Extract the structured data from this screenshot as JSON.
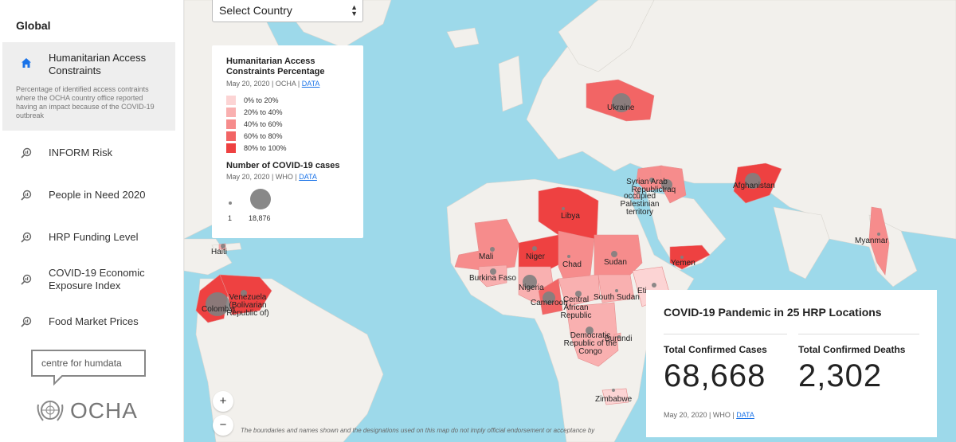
{
  "sidebar": {
    "heading": "Global",
    "items": [
      {
        "label": "Humanitarian Access Constraints",
        "desc": "Percentage of identified access contraints where the OCHA country office reported having an impact because of the COVID-19 outbreak"
      },
      {
        "label": "INFORM Risk"
      },
      {
        "label": "People in Need 2020"
      },
      {
        "label": "HRP Funding Level"
      },
      {
        "label": "COVID-19 Economic Exposure Index"
      },
      {
        "label": "Food Market Prices"
      }
    ],
    "brand": "centre for humdata",
    "ocha": "OCHA"
  },
  "select": {
    "value": "Select Country"
  },
  "legend": {
    "title": "Humanitarian Access Constraints Percentage",
    "source": "May 20, 2020 | OCHA | ",
    "source_link": "DATA",
    "items": [
      "0% to 20%",
      "20% to 40%",
      "40% to 60%",
      "60% to 80%",
      "80% to 100%"
    ],
    "colors": [
      "#fcd4d4",
      "#f9b0b0",
      "#f68c8c",
      "#f26565",
      "#ee4141"
    ],
    "cases_title": "Number of COVID-19 cases",
    "cases_source": "May 20, 2020 | WHO | ",
    "cases_source_link": "DATA",
    "min_label": "1",
    "max_label": "18,876"
  },
  "stats": {
    "title": "COVID-19 Pandemic in 25 HRP Locations",
    "cases_label": "Total Confirmed Cases",
    "cases_value": "68,668",
    "deaths_label": "Total Confirmed Deaths",
    "deaths_value": "2,302",
    "source": "May 20, 2020 | WHO | ",
    "source_link": "DATA"
  },
  "zoom": {
    "in": "+",
    "out": "−"
  },
  "disclaimer": "The boundaries and names shown and the designations used on this map do not imply official endorsement or acceptance by",
  "countries": {
    "ukraine": "Ukraine",
    "syria": "Syrian Arab Republic",
    "iraq": "Iraq",
    "palestine": "occupied Palestinian territory",
    "afghanistan": "Afghanistan",
    "libya": "Libya",
    "mali": "Mali",
    "niger": "Niger",
    "chad": "Chad",
    "sudan": "Sudan",
    "yemen": "Yemen",
    "myanmar": "Myanmar",
    "burkina": "Burkina Faso",
    "nigeria": "Nigeria",
    "cameroon": "Cameroon",
    "car": "Central African Republic",
    "south_sudan": "South Sudan",
    "ethiopia": "Eti",
    "drc": "Democratic Republic of the Congo",
    "burundi": "Burundi",
    "zimbabwe": "Zimbabwe",
    "haiti": "Haiti",
    "colombia": "Colombia",
    "venezuela": "Venezuela (Bolivarian Republic of)"
  }
}
